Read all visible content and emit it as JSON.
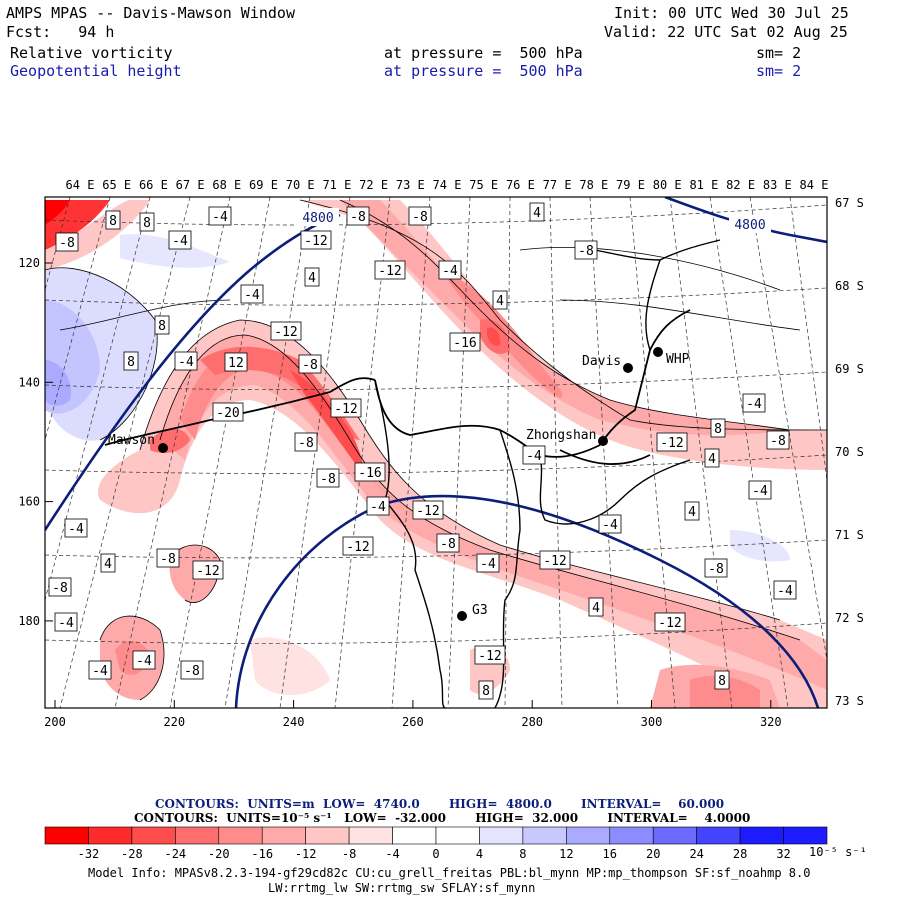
{
  "header": {
    "title": "AMPS MPAS -- Davis-Mawson Window",
    "init": "Init: 00 UTC Wed 30 Jul 25",
    "fcst": "Fcst:   94 h",
    "valid": "Valid: 22 UTC Sat 02 Aug 25",
    "field1": {
      "name": "Relative vorticity",
      "level": "at pressure =  500 hPa",
      "sm": "sm= 2"
    },
    "field2": {
      "name": "Geopotential height",
      "level": "at pressure =  500 hPa",
      "sm": "sm= 2"
    }
  },
  "axes": {
    "top_lon": [
      "64 E",
      "65 E",
      "66 E",
      "67 E",
      "68 E",
      "69 E",
      "70 E",
      "71 E",
      "72 E",
      "73 E",
      "74 E",
      "75 E",
      "76 E",
      "77 E",
      "78 E",
      "79 E",
      "80 E",
      "81 E",
      "82 E",
      "83 E",
      "84 E"
    ],
    "right_lat": [
      "67 S",
      "68 S",
      "69 S",
      "70 S",
      "71 S",
      "72 S",
      "73 S"
    ],
    "bottom_x": [
      "200",
      "220",
      "240",
      "260",
      "280",
      "300",
      "320"
    ],
    "left_y": [
      "120",
      "140",
      "160",
      "180"
    ]
  },
  "stations": [
    {
      "name": "Davis"
    },
    {
      "name": "WHP"
    },
    {
      "name": "Mawson"
    },
    {
      "name": "Zhongshan"
    },
    {
      "name": "G3"
    }
  ],
  "contour_labels": {
    "height": [
      "4800",
      "4800"
    ],
    "vorticity": [
      "8",
      "8",
      "-8",
      "-4",
      "-4",
      "-8",
      "-8",
      "4",
      "-12",
      "-8",
      "-4",
      "-4",
      "8",
      "4",
      "-12",
      "8",
      "-4",
      "12",
      "-8",
      "-12",
      "-16",
      "4",
      "-12",
      "-20",
      "-8",
      "-8",
      "-4",
      "-16",
      "-4",
      "-4",
      "-12",
      "-8",
      "-12",
      "-4",
      "4",
      "4",
      "-8",
      "-12",
      "-4",
      "-12",
      "-8",
      "4",
      "-4",
      "-12",
      "-4",
      "-8",
      "8",
      "4",
      "-4",
      "-4",
      "-12",
      "-8",
      "-4",
      "-4",
      "-8",
      "-12"
    ]
  },
  "footer": {
    "contour1": "CONTOURS:  UNITS=m  LOW=  4740.0       HIGH=  4800.0       INTERVAL=    60.000",
    "contour2": "CONTOURS:  UNITS=10⁻⁵ s⁻¹   LOW=  -32.000       HIGH=  32.000       INTERVAL=    4.0000",
    "scale_labels": [
      "-32",
      "-28",
      "-24",
      "-20",
      "-16",
      "-12",
      "-8",
      "-4",
      "0",
      "4",
      "8",
      "12",
      "16",
      "20",
      "24",
      "28",
      "32"
    ],
    "scale_unit": "10⁻⁵ s⁻¹",
    "scale_colors": [
      "#ff0000",
      "#ff2a2a",
      "#ff4d4d",
      "#ff6e6e",
      "#ff8c8c",
      "#ffaaaa",
      "#ffc6c6",
      "#ffe2e2",
      "#ffffff",
      "#ffffff",
      "#e4e4ff",
      "#c8c8ff",
      "#aaaaff",
      "#8c8cff",
      "#6a6aff",
      "#4444ff",
      "#1c1cff"
    ],
    "model_info1": "Model Info: MPASv8.2.3-194-gf29cd82c CU:cu_grell_freitas PBL:bl_mynn MP:mp_thompson SF:sf_noahmp 8.0",
    "model_info2": "LW:rrtmg_lw SW:rrtmg_sw SFLAY:sf_mynn"
  }
}
